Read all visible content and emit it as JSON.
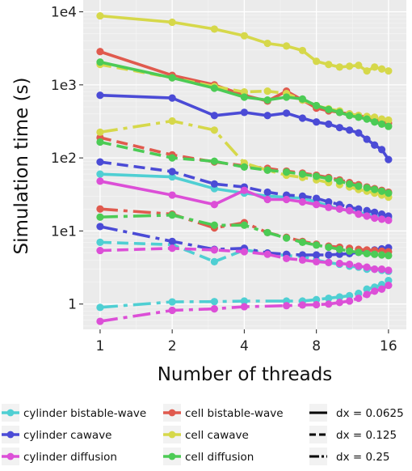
{
  "chart_data": {
    "type": "line",
    "xlabel": "Number of threads",
    "ylabel": "Simulation time (s)",
    "x_scale": "log2",
    "y_scale": "log10",
    "xlim": [
      0.85,
      19
    ],
    "ylim": [
      0.45,
      14500
    ],
    "x_ticks": [
      1,
      2,
      4,
      8,
      16
    ],
    "x_tick_labels": [
      "1",
      "2",
      "4",
      "8",
      "16"
    ],
    "y_ticks": [
      1,
      10,
      100,
      1000,
      10000
    ],
    "y_tick_labels": [
      "1",
      "1e1",
      "1e2",
      "1e3",
      "1e4"
    ],
    "grid": true,
    "legend_position": "bottom",
    "colors": {
      "cylinder bistable-wave": "#4FCFD3",
      "cylinder cawave": "#4B4BD6",
      "cylinder diffusion": "#DC4FD7",
      "cell bistable-wave": "#E05A4E",
      "cell cawave": "#D6D84A",
      "cell diffusion": "#4CCB55"
    },
    "color_legend": [
      "cylinder bistable-wave",
      "cylinder cawave",
      "cylinder diffusion",
      "cell bistable-wave",
      "cell cawave",
      "cell diffusion"
    ],
    "linetype_legend": [
      "dx = 0.0625",
      "dx = 0.125",
      "dx = 0.25"
    ],
    "series": [
      {
        "name": "cylinder bistable-wave",
        "dx": "dx = 0.0625",
        "x": [
          1,
          2,
          3,
          4,
          5,
          6,
          7,
          8,
          9,
          10,
          11,
          12,
          13,
          14,
          15,
          16
        ],
        "y": [
          60,
          55,
          38,
          33,
          30,
          29,
          28,
          25,
          22,
          20,
          19,
          18,
          17,
          16,
          15,
          15
        ]
      },
      {
        "name": "cylinder bistable-wave",
        "dx": "dx = 0.125",
        "x": [
          1,
          2,
          3,
          4,
          5,
          6,
          7,
          8,
          9,
          10,
          11,
          12,
          13,
          14,
          15,
          16
        ],
        "y": [
          7,
          6.5,
          3.8,
          5.5,
          5,
          4.6,
          4.5,
          4,
          3.7,
          3.5,
          3.3,
          3.2,
          3.0,
          3.0,
          2.9,
          2.8
        ]
      },
      {
        "name": "cylinder bistable-wave",
        "dx": "dx = 0.25",
        "x": [
          1,
          2,
          3,
          4,
          6,
          7,
          8,
          9,
          10,
          11,
          12,
          13,
          14,
          15,
          16
        ],
        "y": [
          0.9,
          1.07,
          1.08,
          1.1,
          1.1,
          1.1,
          1.15,
          1.2,
          1.25,
          1.3,
          1.4,
          1.6,
          1.7,
          1.85,
          2.1
        ]
      },
      {
        "name": "cylinder cawave",
        "dx": "dx = 0.0625",
        "x": [
          1,
          2,
          3,
          4,
          5,
          6,
          7,
          8,
          9,
          10,
          11,
          12,
          13,
          14,
          15,
          16
        ],
        "y": [
          720,
          660,
          380,
          420,
          380,
          410,
          350,
          310,
          290,
          260,
          240,
          220,
          180,
          150,
          130,
          95
        ]
      },
      {
        "name": "cylinder cawave",
        "dx": "dx = 0.125",
        "x": [
          1,
          2,
          3,
          4,
          5,
          6,
          7,
          8,
          9,
          10,
          11,
          12,
          13,
          14,
          15,
          16
        ],
        "y": [
          88,
          65,
          44,
          40,
          34,
          31,
          30,
          28,
          25,
          23,
          21,
          20,
          19,
          18,
          17,
          16
        ]
      },
      {
        "name": "cylinder cawave",
        "dx": "dx = 0.25",
        "x": [
          1,
          2,
          3,
          4,
          5,
          6,
          7,
          8,
          9,
          10,
          11,
          12,
          13,
          14,
          15,
          16
        ],
        "y": [
          11.5,
          7.2,
          5.6,
          5.8,
          5.0,
          4.8,
          4.7,
          4.7,
          4.7,
          4.8,
          4.9,
          5.1,
          5.3,
          5.5,
          5.7,
          5.9
        ]
      },
      {
        "name": "cylinder diffusion",
        "dx": "dx = 0.0625",
        "x": [
          1,
          2,
          3,
          4,
          5,
          6,
          7,
          8,
          9,
          10,
          11,
          12,
          13,
          14,
          15,
          16
        ],
        "y": [
          48,
          31,
          23,
          36,
          27,
          27,
          25,
          23,
          21,
          20,
          19,
          17,
          16,
          15,
          14.5,
          14
        ]
      },
      {
        "name": "cylinder diffusion",
        "dx": "dx = 0.125",
        "x": [
          1,
          2,
          3,
          4,
          5,
          6,
          7,
          8,
          9,
          10,
          11,
          12,
          13,
          14,
          15,
          16
        ],
        "y": [
          5.4,
          5.8,
          5.5,
          5.2,
          4.8,
          4.2,
          4.0,
          3.8,
          3.7,
          3.6,
          3.5,
          3.3,
          3.2,
          3.0,
          3.0,
          2.9
        ]
      },
      {
        "name": "cylinder diffusion",
        "dx": "dx = 0.25",
        "x": [
          1,
          2,
          3,
          4,
          6,
          7,
          8,
          9,
          10,
          11,
          12,
          13,
          14,
          15,
          16
        ],
        "y": [
          0.58,
          0.82,
          0.86,
          0.92,
          0.95,
          0.97,
          0.98,
          1.0,
          1.05,
          1.1,
          1.2,
          1.35,
          1.5,
          1.6,
          1.8
        ]
      },
      {
        "name": "cell bistable-wave",
        "dx": "dx = 0.0625",
        "x": [
          1,
          2,
          3,
          4,
          5,
          6,
          7,
          8,
          9,
          10,
          11,
          12,
          13,
          14,
          15,
          16
        ],
        "y": [
          2850,
          1350,
          1000,
          720,
          600,
          820,
          620,
          480,
          440,
          420,
          400,
          380,
          360,
          340,
          320,
          300
        ]
      },
      {
        "name": "cell bistable-wave",
        "dx": "dx = 0.125",
        "x": [
          1,
          2,
          3,
          4,
          5,
          6,
          7,
          8,
          9,
          10,
          11,
          12,
          13,
          14,
          15,
          16
        ],
        "y": [
          190,
          110,
          88,
          78,
          72,
          66,
          62,
          58,
          54,
          50,
          46,
          43,
          40,
          38,
          36,
          34
        ]
      },
      {
        "name": "cell bistable-wave",
        "dx": "dx = 0.25",
        "x": [
          1,
          2,
          3,
          4,
          5,
          6,
          7,
          8,
          9,
          10,
          11,
          12,
          13,
          14,
          15,
          16
        ],
        "y": [
          20,
          17,
          11,
          13,
          9.5,
          8.2,
          7.2,
          6.6,
          6.2,
          6.0,
          5.8,
          5.6,
          5.5,
          5.4,
          5.3,
          5.2
        ]
      },
      {
        "name": "cell cawave",
        "dx": "dx = 0.0625",
        "x": [
          1,
          2,
          3,
          4,
          5,
          6,
          7,
          8,
          9,
          10,
          11,
          12,
          13,
          14,
          15,
          16
        ],
        "y": [
          8800,
          7200,
          5800,
          4700,
          3700,
          3400,
          2950,
          2100,
          1900,
          1750,
          1800,
          1850,
          1550,
          1750,
          1650,
          1550
        ]
      },
      {
        "name": "cell cawave",
        "dx": "dx = 0.125",
        "x": [
          1,
          2,
          3,
          4,
          5,
          6,
          7,
          8,
          9,
          10,
          11,
          12,
          13,
          14,
          15,
          16
        ],
        "y": [
          1900,
          1250,
          950,
          800,
          820,
          760,
          620,
          520,
          470,
          440,
          400,
          380,
          370,
          360,
          340,
          330
        ]
      },
      {
        "name": "cell cawave",
        "dx": "dx = 0.25",
        "x": [
          1,
          2,
          3,
          4,
          5,
          6,
          7,
          8,
          9,
          10,
          11,
          12,
          13,
          14,
          15,
          16
        ],
        "y": [
          225,
          320,
          240,
          85,
          68,
          58,
          54,
          50,
          46,
          43,
          40,
          37,
          35,
          33,
          31,
          29
        ]
      },
      {
        "name": "cell diffusion",
        "dx": "dx = 0.0625",
        "x": [
          1,
          2,
          3,
          4,
          5,
          6,
          7,
          8,
          9,
          10,
          11,
          12,
          13,
          14,
          15,
          16
        ],
        "y": [
          2050,
          1250,
          900,
          680,
          620,
          680,
          640,
          520,
          460,
          420,
          380,
          360,
          340,
          310,
          290,
          270
        ]
      },
      {
        "name": "cell diffusion",
        "dx": "dx = 0.125",
        "x": [
          1,
          2,
          3,
          4,
          5,
          6,
          7,
          8,
          9,
          10,
          11,
          12,
          13,
          14,
          15,
          16
        ],
        "y": [
          165,
          100,
          90,
          75,
          68,
          64,
          60,
          56,
          52,
          48,
          44,
          41,
          39,
          37,
          35,
          33
        ]
      },
      {
        "name": "cell diffusion",
        "dx": "dx = 0.25",
        "x": [
          1,
          2,
          3,
          4,
          5,
          6,
          7,
          8,
          9,
          10,
          11,
          12,
          13,
          14,
          15,
          16
        ],
        "y": [
          15.5,
          16.5,
          12,
          12,
          9.5,
          8.0,
          7.0,
          6.4,
          6.0,
          5.6,
          5.3,
          5.1,
          4.9,
          4.8,
          4.7,
          4.6
        ]
      }
    ]
  }
}
